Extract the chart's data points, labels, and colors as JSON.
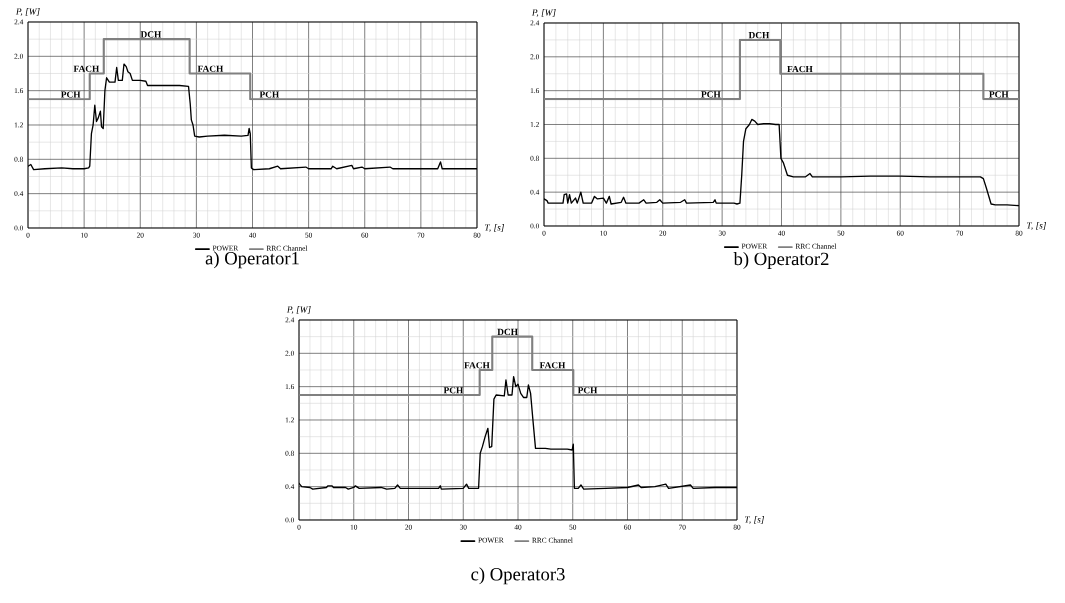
{
  "chart_data": [
    {
      "type": "line",
      "title": "a) Operator1",
      "xlabel": "T, [s]",
      "ylabel": "P, [W]",
      "xlim": [
        0,
        80
      ],
      "ylim": [
        0,
        2.4
      ],
      "xticks": [
        0,
        10,
        20,
        30,
        40,
        50,
        60,
        70,
        80
      ],
      "yticks": [
        {
          "value": 0,
          "label": "0.0"
        },
        {
          "value": 0.4,
          "label": "0.4"
        },
        {
          "value": 0.8,
          "label": "0.8"
        },
        {
          "value": 1.2,
          "label": "1.2"
        },
        {
          "value": 1.6,
          "label": "1.6"
        },
        {
          "value": 2.0,
          "label": "2.0"
        },
        {
          "value": 2.4,
          "label": "2.4"
        }
      ],
      "grid": true,
      "legend": "bottom",
      "series": [
        {
          "name": "POWER",
          "color": "#000000",
          "x": [
            0,
            0.5,
            1,
            3,
            6,
            8,
            10,
            10.8,
            11,
            11.3,
            11.6,
            11.9,
            12.2,
            12.5,
            12.9,
            13.1,
            13.4,
            13.7,
            14,
            14.5,
            15.5,
            15.8,
            16.1,
            16.8,
            17.1,
            17.5,
            17.8,
            18.2,
            18.6,
            20,
            21,
            21.3,
            24,
            27,
            28.6,
            28.9,
            29.1,
            29.4,
            29.7,
            30.5,
            32,
            35,
            38,
            39.2,
            39.4,
            39.6,
            39.8,
            40.2,
            43,
            44.5,
            45,
            49.5,
            50,
            54,
            54.3,
            55,
            57.7,
            58,
            59.5,
            60,
            64.5,
            65,
            70,
            73,
            73.5,
            73.8,
            76,
            80
          ],
          "values": [
            0.72,
            0.74,
            0.68,
            0.69,
            0.7,
            0.69,
            0.69,
            0.7,
            0.72,
            1.1,
            1.2,
            1.43,
            1.24,
            1.28,
            1.36,
            1.18,
            1.16,
            1.6,
            1.75,
            1.7,
            1.7,
            1.87,
            1.72,
            1.72,
            1.91,
            1.88,
            1.82,
            1.8,
            1.72,
            1.72,
            1.71,
            1.66,
            1.66,
            1.66,
            1.65,
            1.45,
            1.26,
            1.2,
            1.07,
            1.06,
            1.07,
            1.08,
            1.07,
            1.08,
            1.16,
            1.1,
            0.7,
            0.68,
            0.69,
            0.72,
            0.69,
            0.71,
            0.69,
            0.69,
            0.72,
            0.69,
            0.73,
            0.69,
            0.71,
            0.69,
            0.71,
            0.69,
            0.69,
            0.69,
            0.77,
            0.69,
            0.69,
            0.69
          ]
        },
        {
          "name": "RRC Channel",
          "color": "#808080",
          "type": "step",
          "x": [
            0,
            11,
            13.5,
            28.8,
            39.6,
            80
          ],
          "values": [
            1.5,
            1.8,
            2.2,
            1.8,
            1.5,
            1.5
          ]
        }
      ],
      "annotations": [
        {
          "text": "PCH",
          "x": 7.6,
          "y": 1.5
        },
        {
          "text": "FACH",
          "x": 10.4,
          "y": 1.8
        },
        {
          "text": "DCH",
          "x": 21.9,
          "y": 2.2
        },
        {
          "text": "FACH",
          "x": 32.5,
          "y": 1.8
        },
        {
          "text": "PCH",
          "x": 43,
          "y": 1.5
        }
      ]
    },
    {
      "type": "line",
      "title": "b) Operator2",
      "xlabel": "T, [s]",
      "ylabel": "P, [W]",
      "xlim": [
        0,
        80
      ],
      "ylim": [
        0,
        2.4
      ],
      "xticks": [
        0,
        10,
        20,
        30,
        40,
        50,
        60,
        70,
        80
      ],
      "yticks": [
        {
          "value": 0,
          "label": "0.0"
        },
        {
          "value": 0.4,
          "label": "0.4"
        },
        {
          "value": 0.8,
          "label": "0.8"
        },
        {
          "value": 1.2,
          "label": "1.2"
        },
        {
          "value": 1.6,
          "label": "1.6"
        },
        {
          "value": 2.0,
          "label": "2.0"
        },
        {
          "value": 2.4,
          "label": "2.4"
        }
      ],
      "grid": true,
      "legend": "bottom",
      "series": [
        {
          "name": "POWER",
          "color": "#000000",
          "x": [
            0,
            0.5,
            0.7,
            2,
            3.2,
            3.4,
            3.8,
            4.0,
            4.3,
            4.6,
            5.3,
            5.6,
            6.2,
            6.6,
            8,
            8.5,
            9,
            10,
            10.5,
            11,
            11.3,
            13,
            13.4,
            13.8,
            16,
            16.8,
            17.2,
            19,
            19.5,
            20,
            23,
            23.7,
            24,
            28.5,
            28.8,
            29,
            32,
            32.5,
            33,
            33.3,
            33.6,
            34,
            34.6,
            35.0,
            35.5,
            36,
            37,
            38,
            39,
            39.6,
            39.9,
            40.3,
            41,
            42,
            44,
            44.8,
            45.2,
            50,
            55,
            60,
            65,
            70,
            73.5,
            74,
            74.5,
            75.3,
            76,
            78,
            80
          ],
          "values": [
            0.32,
            0.3,
            0.27,
            0.27,
            0.27,
            0.37,
            0.38,
            0.27,
            0.37,
            0.27,
            0.33,
            0.27,
            0.4,
            0.27,
            0.27,
            0.35,
            0.32,
            0.33,
            0.27,
            0.35,
            0.26,
            0.28,
            0.34,
            0.27,
            0.27,
            0.31,
            0.27,
            0.28,
            0.31,
            0.27,
            0.28,
            0.31,
            0.27,
            0.28,
            0.31,
            0.27,
            0.27,
            0.26,
            0.27,
            0.6,
            1.0,
            1.15,
            1.2,
            1.26,
            1.24,
            1.2,
            1.21,
            1.21,
            1.2,
            1.2,
            0.8,
            0.75,
            0.6,
            0.58,
            0.58,
            0.62,
            0.58,
            0.58,
            0.59,
            0.59,
            0.58,
            0.58,
            0.58,
            0.56,
            0.45,
            0.26,
            0.25,
            0.25,
            0.24
          ]
        },
        {
          "name": "RRC Channel",
          "color": "#808080",
          "type": "step",
          "x": [
            0,
            33,
            39.8,
            74,
            80
          ],
          "values": [
            1.5,
            2.2,
            1.8,
            1.5,
            1.5
          ]
        }
      ],
      "annotations": [
        {
          "text": "PCH",
          "x": 28.1,
          "y": 1.5
        },
        {
          "text": "DCH",
          "x": 36.2,
          "y": 2.2
        },
        {
          "text": "FACH",
          "x": 43.1,
          "y": 1.8
        },
        {
          "text": "PCH",
          "x": 76.6,
          "y": 1.5
        }
      ]
    },
    {
      "type": "line",
      "title": "c) Operator3",
      "xlabel": "T, [s]",
      "ylabel": "P, [W]",
      "xlim": [
        0,
        80
      ],
      "ylim": [
        0,
        2.4
      ],
      "xticks": [
        0,
        10,
        20,
        30,
        40,
        50,
        60,
        70,
        80
      ],
      "yticks": [
        {
          "value": 0,
          "label": "0.0"
        },
        {
          "value": 0.4,
          "label": "0.4"
        },
        {
          "value": 0.8,
          "label": "0.8"
        },
        {
          "value": 1.2,
          "label": "1.2"
        },
        {
          "value": 1.6,
          "label": "1.6"
        },
        {
          "value": 2.0,
          "label": "2.0"
        },
        {
          "value": 2.4,
          "label": "2.4"
        }
      ],
      "grid": true,
      "legend": "bottom",
      "series": [
        {
          "name": "POWER",
          "color": "#000000",
          "x": [
            0,
            0.5,
            2,
            2.5,
            5,
            5.3,
            6,
            6.3,
            8.5,
            9,
            10,
            10.3,
            11,
            15,
            16,
            17.5,
            18,
            18.5,
            22,
            25.5,
            25.8,
            26,
            30,
            30.6,
            31,
            32.8,
            33.1,
            33.5,
            34,
            34.5,
            34.8,
            35.2,
            35.6,
            36,
            37.5,
            37.8,
            38.2,
            38.9,
            39.2,
            39.6,
            40,
            40.5,
            41,
            41.6,
            41.9,
            42.3,
            42.7,
            43.2,
            45,
            46,
            49,
            49.9,
            50.1,
            50.3,
            51,
            51.5,
            52,
            56,
            60,
            62,
            62.5,
            65,
            67,
            67.5,
            71.5,
            72,
            76,
            80
          ],
          "values": [
            0.44,
            0.4,
            0.39,
            0.37,
            0.39,
            0.41,
            0.41,
            0.39,
            0.39,
            0.37,
            0.39,
            0.41,
            0.38,
            0.39,
            0.37,
            0.38,
            0.42,
            0.38,
            0.38,
            0.38,
            0.41,
            0.37,
            0.38,
            0.43,
            0.38,
            0.38,
            0.8,
            0.88,
            1.0,
            1.1,
            0.87,
            0.88,
            1.45,
            1.5,
            1.49,
            1.68,
            1.5,
            1.5,
            1.72,
            1.6,
            1.63,
            1.52,
            1.47,
            1.47,
            1.62,
            1.52,
            1.22,
            0.86,
            0.86,
            0.85,
            0.85,
            0.84,
            0.91,
            0.38,
            0.38,
            0.42,
            0.37,
            0.38,
            0.39,
            0.42,
            0.39,
            0.4,
            0.43,
            0.38,
            0.42,
            0.38,
            0.39,
            0.39
          ]
        },
        {
          "name": "RRC Channel",
          "color": "#808080",
          "type": "step",
          "x": [
            0,
            33,
            35.3,
            42.6,
            50.1,
            80
          ],
          "values": [
            1.5,
            1.8,
            2.2,
            1.8,
            1.5,
            1.5
          ]
        }
      ],
      "annotations": [
        {
          "text": "PCH",
          "x": 28.2,
          "y": 1.5
        },
        {
          "text": "FACH",
          "x": 32.5,
          "y": 1.8
        },
        {
          "text": "DCH",
          "x": 38.1,
          "y": 2.2
        },
        {
          "text": "FACH",
          "x": 46.3,
          "y": 1.8
        },
        {
          "text": "PCH",
          "x": 52.7,
          "y": 1.5
        }
      ]
    }
  ]
}
